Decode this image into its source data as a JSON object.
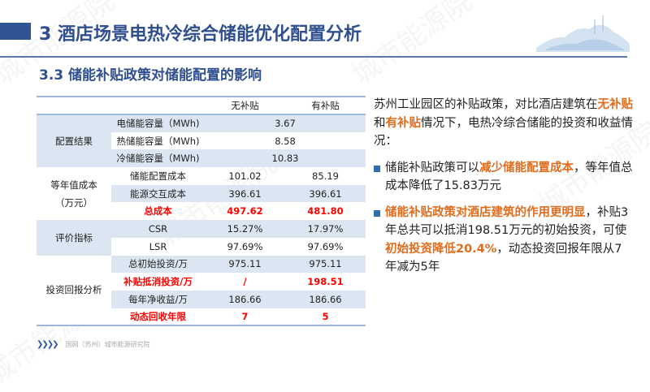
{
  "header": {
    "title": "3 酒店场景电热冷综合储能优化配置分析",
    "subtitle": "3.3 储能补贴政策对储能配置的影响"
  },
  "table": {
    "columns": [
      "无补贴",
      "有补贴"
    ],
    "groups": [
      "配置结果",
      "等年值成本",
      "（万元）",
      "评价指标",
      "投资回报分析"
    ],
    "rows": [
      {
        "item": "电储能容量（MWh)",
        "merged": "3.67"
      },
      {
        "item": "热储能容量（MWh)",
        "merged": "8.58"
      },
      {
        "item": "冷储能容量（MWh)",
        "merged": "10.83"
      },
      {
        "item": "储能配置成本",
        "a": "101.02",
        "b": "85.19"
      },
      {
        "item": "能源交互成本",
        "a": "396.61",
        "b": "396.61"
      },
      {
        "item": "总成本",
        "a": "497.62",
        "b": "481.80"
      },
      {
        "item": "CSR",
        "a": "15.27%",
        "b": "17.97%"
      },
      {
        "item": "LSR",
        "a": "97.69%",
        "b": "97.69%"
      },
      {
        "item": "总初始投资/万",
        "a": "975.11",
        "b": "975.11"
      },
      {
        "item": "补贴抵消投资/万",
        "a": "/",
        "b": "198.51"
      },
      {
        "item": "每年净收益/万",
        "a": "186.66",
        "b": "186.66"
      },
      {
        "item": "动态回收年限",
        "a": "7",
        "b": "5"
      }
    ]
  },
  "text": {
    "intro": [
      "苏州工业园区的补贴政策，对比酒店建筑在",
      "无补贴",
      "和",
      "有补贴",
      "情况下，电热冷综合储能的投资和收益情况："
    ],
    "b1": [
      "储能补贴政策可以",
      "减少储能配置成本",
      "，等年值总成本降低了15.83万元"
    ],
    "b2": [
      "储能补贴政策对酒店建筑的作用更明显",
      "，补贴3年总共可以抵消198.51万元的初始投资，可使",
      "初始投资降低20.4%",
      "，动态投资回报年限从7年减为5年"
    ]
  },
  "footer": {
    "org": "国网（苏州）城市能源研究院"
  },
  "watermark": "城市能源院",
  "colors": {
    "title": "#2f4f8f",
    "highlight": "#e06c1c",
    "red": "#ff0000",
    "row_shade": "#dce6f2"
  }
}
